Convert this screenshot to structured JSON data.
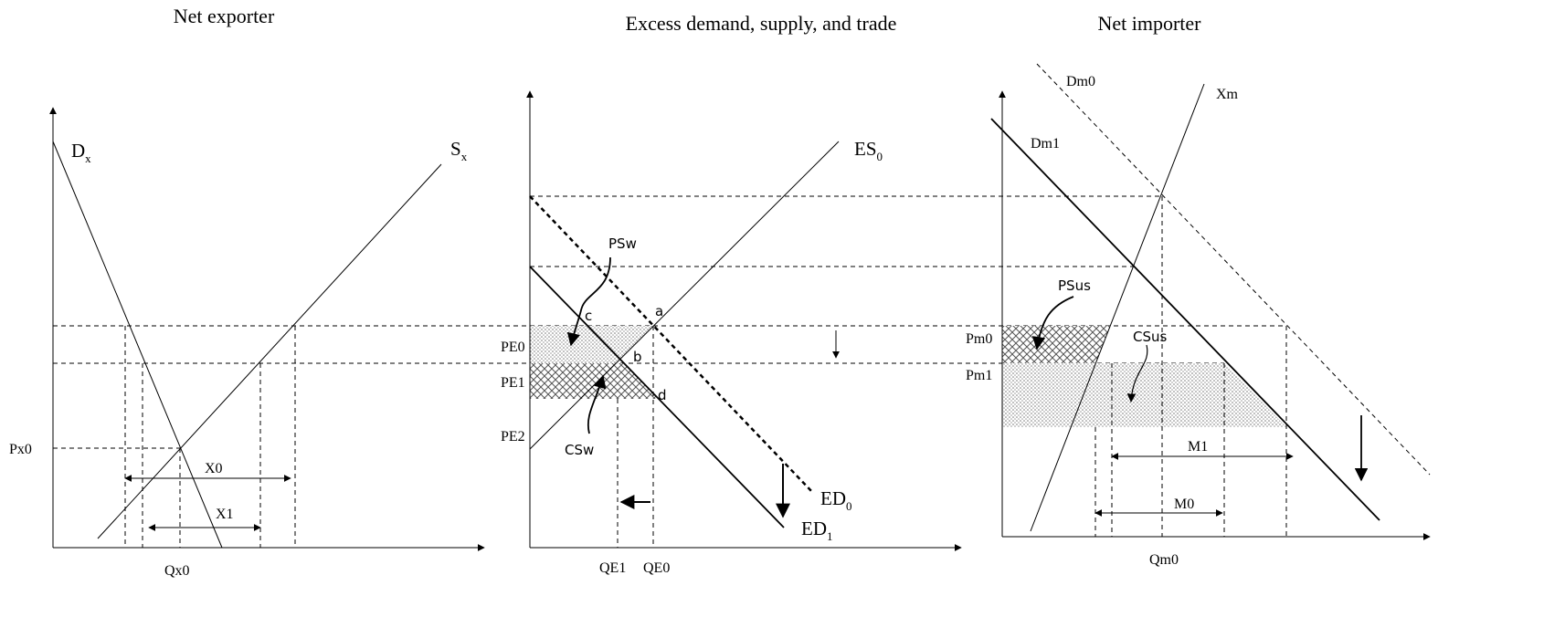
{
  "titles": [
    "Net exporter",
    "Excess demand, supply, and trade",
    "Net importer"
  ],
  "exporter": {
    "demand": {
      "main": "D",
      "sub": "x"
    },
    "supply": {
      "main": "S",
      "sub": "x"
    },
    "price": "Px0",
    "quantity": "Qx0",
    "exports0": "X0",
    "exports1": "X1"
  },
  "trade": {
    "supply": {
      "main": "ES",
      "sub": "0"
    },
    "demand0": {
      "main": "ED",
      "sub": "0"
    },
    "demand1": {
      "main": "ED",
      "sub": "1"
    },
    "producer_surplus": "PSw",
    "consumer_surplus": "CSw",
    "points": [
      "c",
      "a",
      "b",
      "d"
    ],
    "prices": [
      "PE0",
      "PE1",
      "PE2"
    ],
    "quantities": [
      "QE1",
      "QE0"
    ]
  },
  "importer": {
    "demand0": "Dm0",
    "supply": "Xm",
    "demand1": "Dm1",
    "producer_surplus": "PSus",
    "consumer_surplus": "CSus",
    "prices": [
      "Pm0",
      "Pm1"
    ],
    "imports1": "M1",
    "imports0": "M0",
    "quantity": "Qm0"
  }
}
